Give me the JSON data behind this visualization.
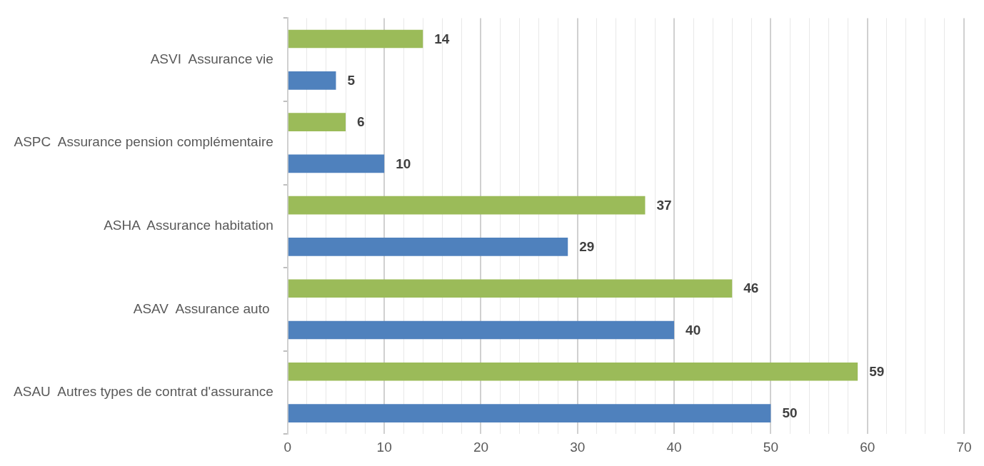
{
  "chart_data": {
    "type": "bar",
    "orientation": "horizontal",
    "categories": [
      "ASVI  Assurance vie",
      "ASPC  Assurance pension complémentaire",
      "ASHA  Assurance habitation",
      "ASAV  Assurance auto ",
      "ASAU  Autres types de contrat d'assurance"
    ],
    "series": [
      {
        "color": "#9bbb59",
        "values": [
          14,
          6,
          37,
          46,
          59
        ]
      },
      {
        "color": "#4f81bd",
        "values": [
          5,
          10,
          29,
          40,
          50
        ]
      }
    ],
    "xlim": [
      0,
      70
    ],
    "xticks": [
      0,
      {
        "value": 2,
        "label": null
      },
      {
        "value": 4,
        "label": null
      },
      {
        "value": 6,
        "label": null
      },
      {
        "value": 8,
        "label": null
      },
      10,
      {
        "value": 12,
        "label": null
      },
      {
        "value": 14,
        "label": null
      },
      {
        "value": 16,
        "label": null
      },
      {
        "value": 18,
        "label": null
      },
      20,
      {
        "value": 22,
        "label": null
      },
      {
        "value": 24,
        "label": null
      },
      {
        "value": 26,
        "label": null
      },
      {
        "value": 28,
        "label": null
      },
      30,
      {
        "value": 32,
        "label": null
      },
      {
        "value": 34,
        "label": null
      },
      {
        "value": 36,
        "label": null
      },
      {
        "value": 38,
        "label": null
      },
      40,
      {
        "value": 42,
        "label": null
      },
      {
        "value": 44,
        "label": null
      },
      {
        "value": 46,
        "label": null
      },
      {
        "value": 48,
        "label": null
      },
      50,
      {
        "value": 52,
        "label": null
      },
      {
        "value": 54,
        "label": null
      },
      {
        "value": 56,
        "label": null
      },
      {
        "value": 58,
        "label": null
      },
      60,
      {
        "value": 62,
        "label": null
      },
      {
        "value": 64,
        "label": null
      },
      {
        "value": 66,
        "label": null
      },
      {
        "value": 68,
        "label": null
      },
      70
    ],
    "grid": "x",
    "data_labels": true
  }
}
